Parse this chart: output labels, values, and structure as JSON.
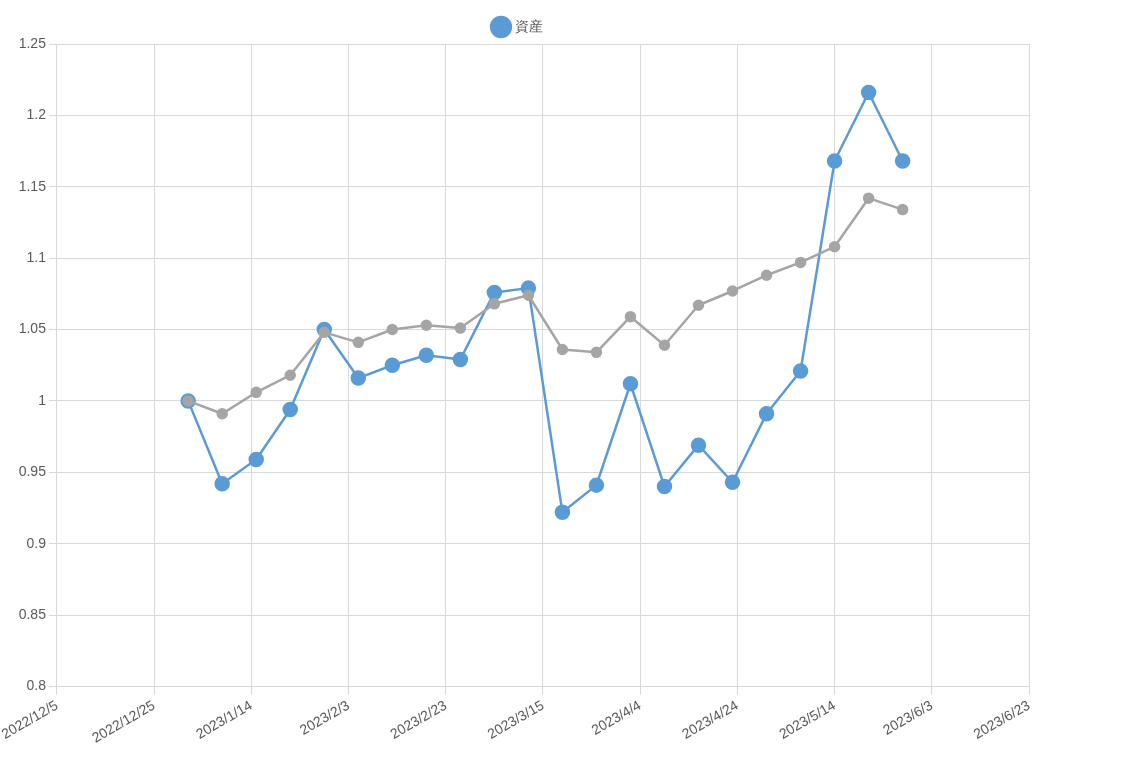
{
  "chart_data": {
    "type": "line",
    "x": [
      "2023-01-01",
      "2023-01-08",
      "2023-01-15",
      "2023-01-22",
      "2023-01-29",
      "2023-02-05",
      "2023-02-12",
      "2023-02-19",
      "2023-02-26",
      "2023-03-05",
      "2023-03-12",
      "2023-03-19",
      "2023-03-26",
      "2023-04-02",
      "2023-04-09",
      "2023-04-16",
      "2023-04-23",
      "2023-04-30",
      "2023-05-07",
      "2023-05-14",
      "2023-05-21",
      "2023-05-28"
    ],
    "series": [
      {
        "name": "資産",
        "color": "#5b9bd5",
        "values": [
          1.0,
          0.942,
          0.959,
          0.994,
          1.05,
          1.016,
          1.025,
          1.032,
          1.029,
          1.076,
          1.079,
          0.922,
          0.941,
          1.012,
          0.94,
          0.969,
          0.943,
          0.991,
          1.021,
          1.168,
          1.216,
          1.168
        ]
      },
      {
        "color": "#a5a5a5",
        "values": [
          1.0,
          0.991,
          1.006,
          1.018,
          1.048,
          1.041,
          1.05,
          1.053,
          1.051,
          1.068,
          1.074,
          1.036,
          1.034,
          1.059,
          1.039,
          1.067,
          1.077,
          1.088,
          1.097,
          1.108,
          1.142,
          1.134
        ]
      }
    ],
    "xlim": [
      "2022-12-05",
      "2023-06-23"
    ],
    "xticks": [
      {
        "value": "2022-12-05",
        "label": "2022/12/5"
      },
      {
        "value": "2022-12-25",
        "label": "2022/12/25"
      },
      {
        "value": "2023-01-14",
        "label": "2023/1/14"
      },
      {
        "value": "2023-02-03",
        "label": "2023/2/3"
      },
      {
        "value": "2023-02-23",
        "label": "2023/2/23"
      },
      {
        "value": "2023-03-15",
        "label": "2023/3/15"
      },
      {
        "value": "2023-04-04",
        "label": "2023/4/4"
      },
      {
        "value": "2023-04-24",
        "label": "2023/4/24"
      },
      {
        "value": "2023-05-14",
        "label": "2023/5/14"
      },
      {
        "value": "2023-06-03",
        "label": "2023/6/3"
      },
      {
        "value": "2023-06-23",
        "label": "2023/6/23"
      }
    ],
    "ylim": [
      0.8,
      1.25
    ],
    "yticks": [
      0.8,
      0.85,
      0.9,
      0.95,
      1,
      1.05,
      1.1,
      1.15,
      1.2,
      1.25
    ],
    "grid": true,
    "legend": "top",
    "marker": "circle",
    "line_style": "solid"
  }
}
